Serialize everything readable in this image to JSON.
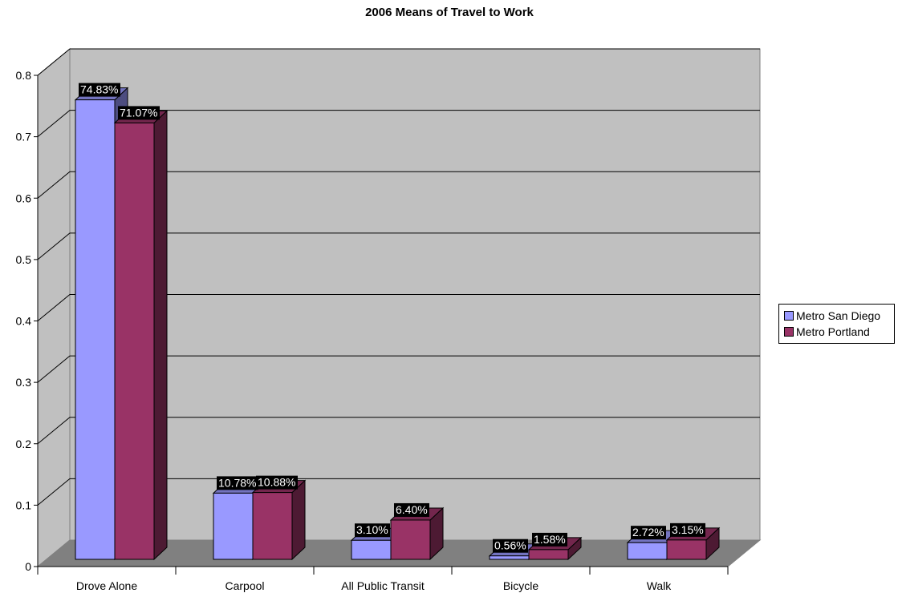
{
  "chart_data": {
    "type": "bar",
    "title": "2006 Means of Travel to Work",
    "xlabel": "",
    "ylabel": "",
    "ylim": [
      0,
      0.8
    ],
    "yticks": [
      "0",
      "0.1",
      "0.2",
      "0.3",
      "0.4",
      "0.5",
      "0.6",
      "0.7",
      "0.8"
    ],
    "grid": true,
    "legend_position": "right",
    "categories": [
      "Drove Alone",
      "Carpool",
      "All Public Transit",
      "Bicycle",
      "Walk"
    ],
    "series": [
      {
        "name": "Metro San Diego",
        "color": "#9999FF",
        "values": [
          0.7483,
          0.1078,
          0.031,
          0.0056,
          0.0272
        ],
        "labels": [
          "74.83%",
          "10.78%",
          "3.10%",
          "0.56%",
          "2.72%"
        ]
      },
      {
        "name": "Metro Portland",
        "color": "#993366",
        "values": [
          0.7107,
          0.1088,
          0.064,
          0.0158,
          0.0315
        ],
        "labels": [
          "71.07%",
          "10.88%",
          "6.40%",
          "1.58%",
          "3.15%"
        ]
      }
    ]
  }
}
